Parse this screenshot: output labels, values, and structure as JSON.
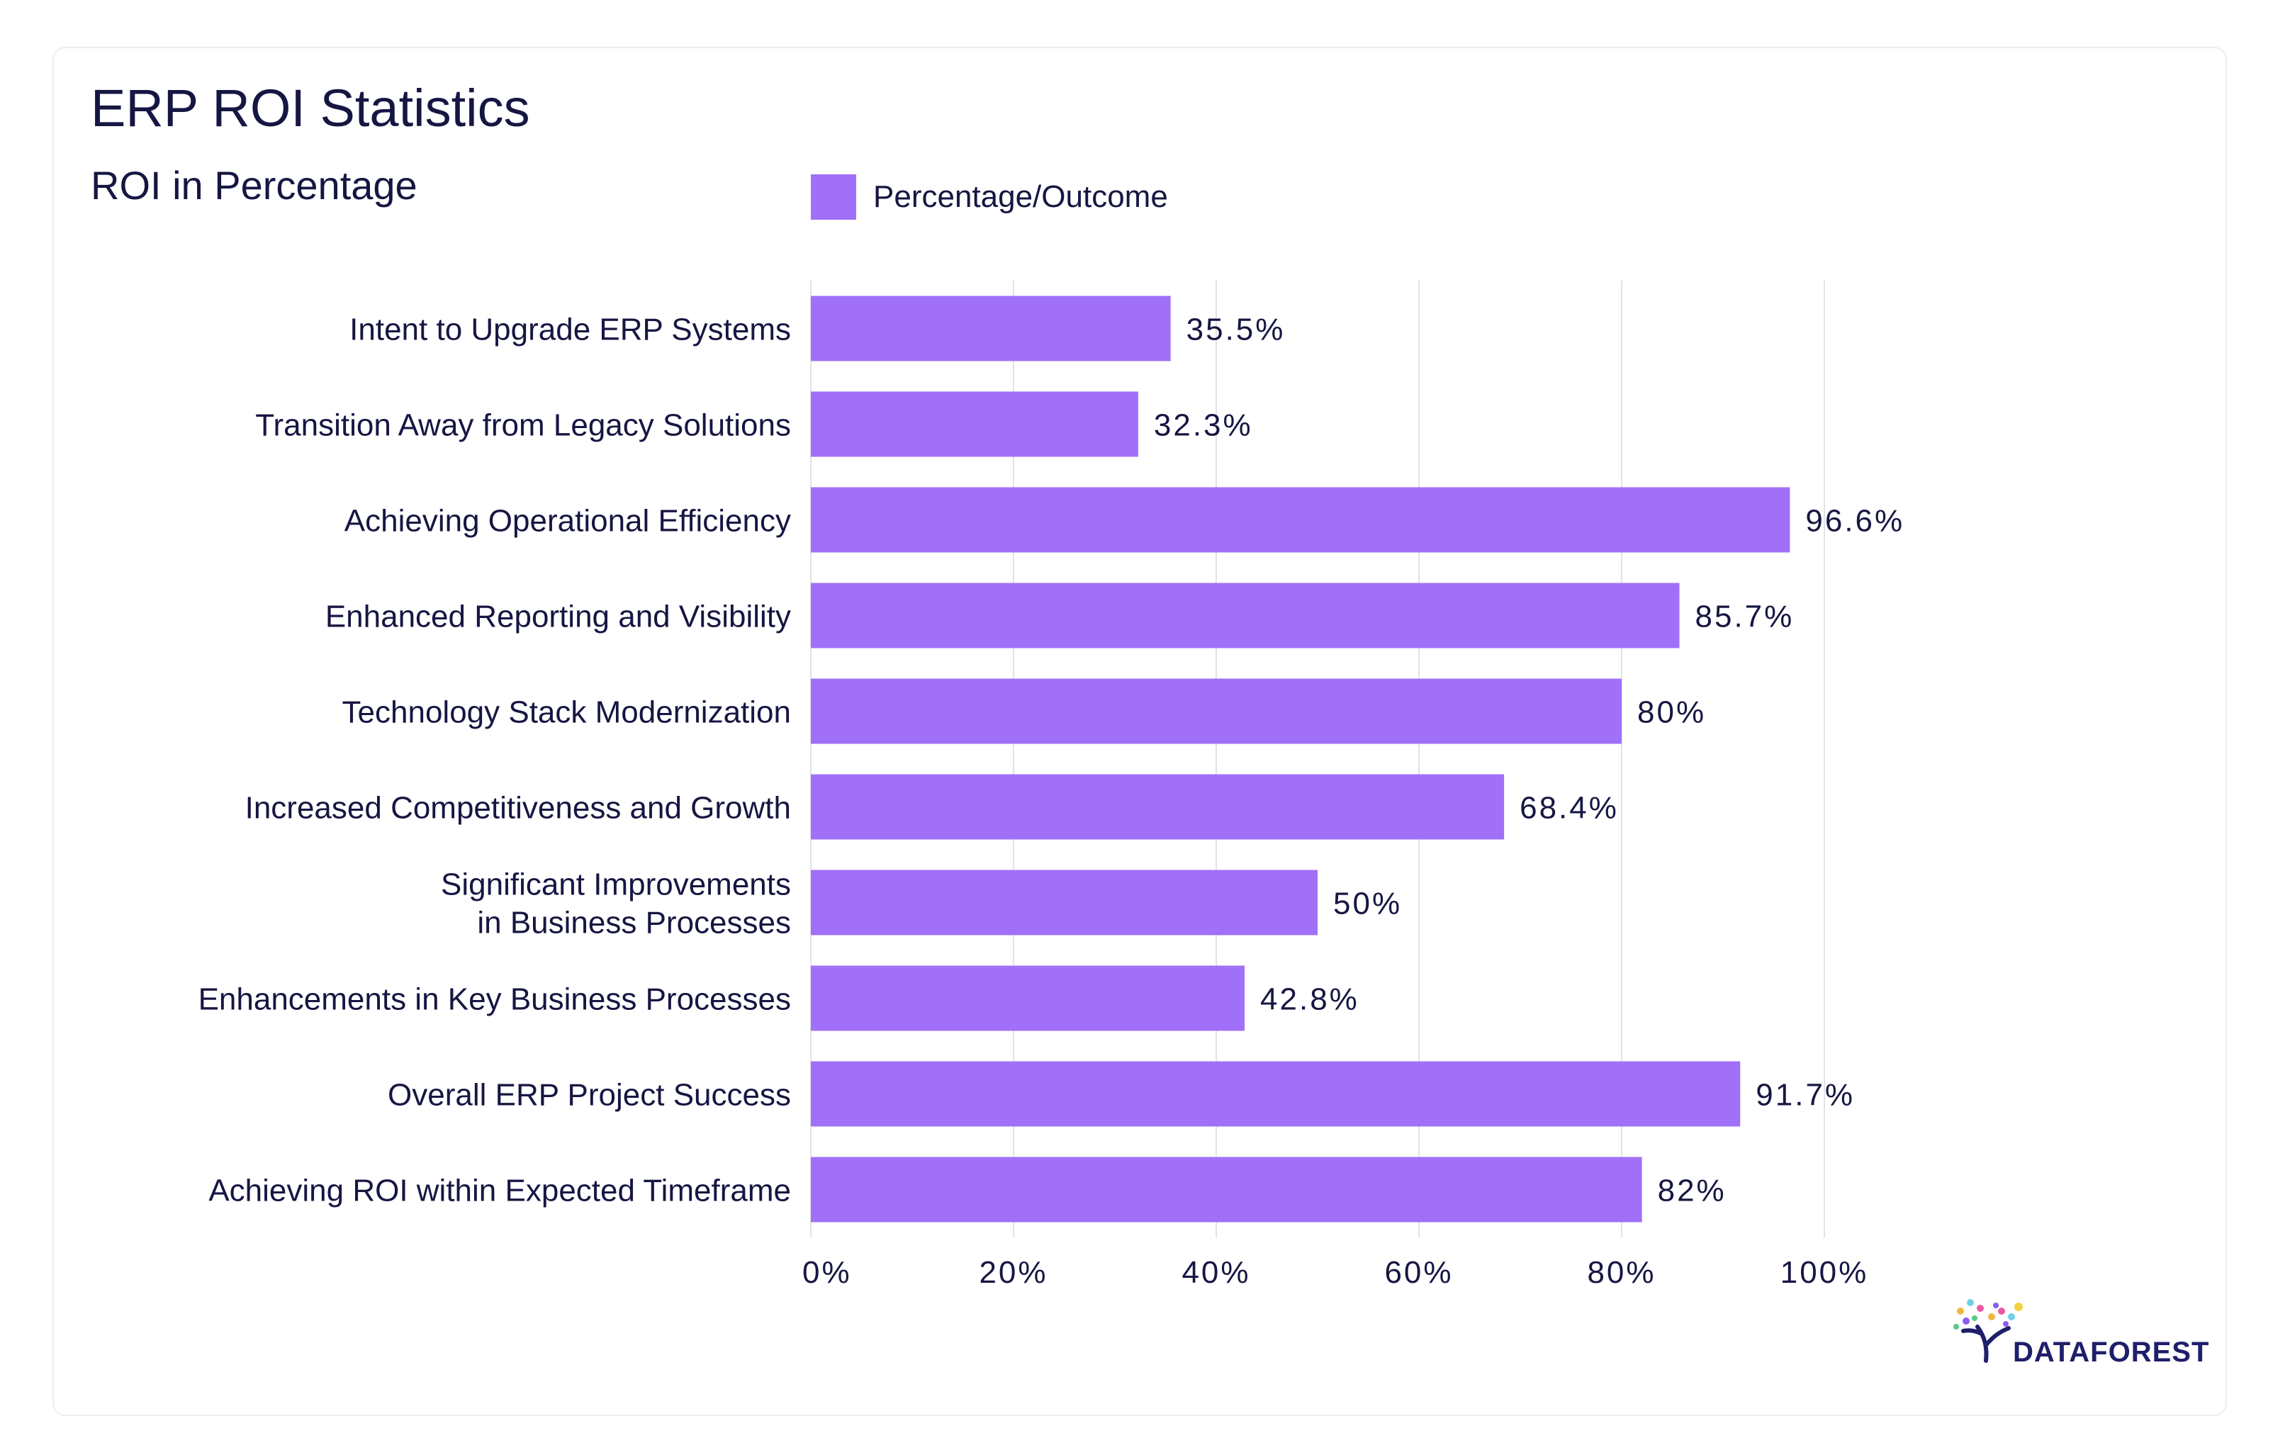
{
  "chart_data": {
    "type": "bar",
    "orientation": "horizontal",
    "title": "ERP ROI Statistics",
    "subtitle": "ROI in Percentage",
    "legend": {
      "label": "Percentage/Outcome",
      "placement": "top"
    },
    "categories": [
      "Intent to Upgrade ERP Systems",
      "Transition Away from Legacy Solutions",
      "Achieving Operational Efficiency",
      "Enhanced Reporting and Visibility",
      "Technology Stack Modernization",
      "Increased Competitiveness and Growth",
      "Significant Improvements\nin Business Processes",
      "Enhancements in Key Business Processes",
      "Overall ERP Project Success",
      "Achieving ROI within Expected Timeframe"
    ],
    "series": [
      {
        "name": "Percentage/Outcome",
        "values": [
          35.5,
          32.3,
          96.6,
          85.7,
          80,
          68.4,
          50,
          42.8,
          91.7,
          82
        ],
        "labels": [
          "35.5%",
          "32.3%",
          "96.6%",
          "85.7%",
          "80%",
          "68.4%",
          "50%",
          "42.8%",
          "91.7%",
          "82%"
        ]
      }
    ],
    "xlim": [
      0,
      100
    ],
    "xticks": [
      0,
      20,
      40,
      60,
      80,
      100
    ],
    "xtick_labels": [
      "0%",
      "20%",
      "40%",
      "60%",
      "80%",
      "100%"
    ],
    "grid": true,
    "bar_color": "#a070f8"
  },
  "brand": {
    "logo_text": "DATAFOREST"
  },
  "colors": {
    "bar": "#a070f8",
    "text": "#161643",
    "grid": "#e2e2e6",
    "logo": "#1f1f6b"
  }
}
